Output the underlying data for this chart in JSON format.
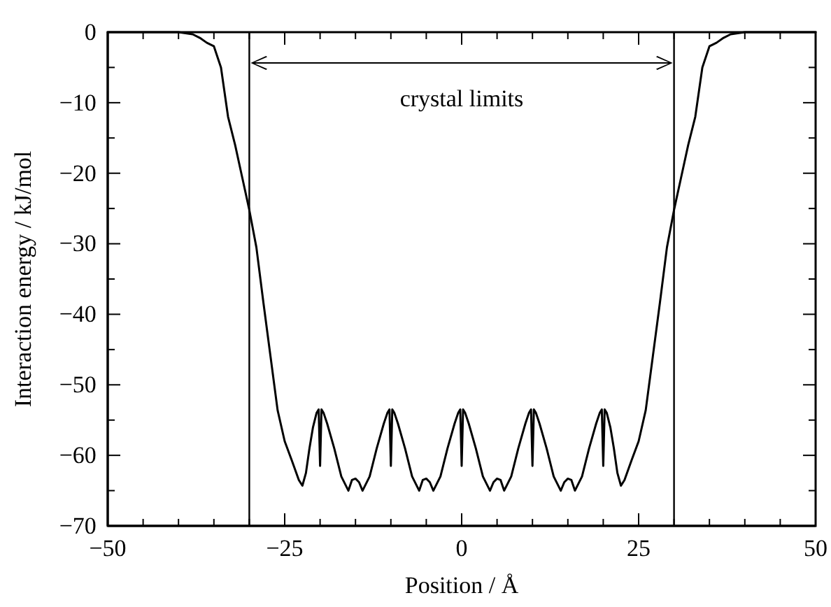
{
  "chart_data": {
    "type": "line",
    "xlabel": "Position / Å",
    "ylabel": "Interaction energy / kJ/mol",
    "xlim": [
      -50,
      50
    ],
    "ylim": [
      -70,
      0
    ],
    "xticks": [
      -50,
      {
        "value": -45,
        "label": null
      },
      {
        "value": -40,
        "label": null
      },
      {
        "value": -35,
        "label": null
      },
      {
        "value": -30,
        "label": null
      },
      -25,
      {
        "value": -20,
        "label": null
      },
      {
        "value": -15,
        "label": null
      },
      {
        "value": -10,
        "label": null
      },
      {
        "value": -5,
        "label": null
      },
      0,
      {
        "value": 5,
        "label": null
      },
      {
        "value": 10,
        "label": null
      },
      {
        "value": 15,
        "label": null
      },
      {
        "value": 20,
        "label": null
      },
      25,
      {
        "value": 30,
        "label": null
      },
      {
        "value": 35,
        "label": null
      },
      {
        "value": 40,
        "label": null
      },
      {
        "value": 45,
        "label": null
      },
      50
    ],
    "yticks": [
      -70,
      {
        "value": -65,
        "label": null
      },
      -60,
      {
        "value": -55,
        "label": null
      },
      -50,
      {
        "value": -45,
        "label": null
      },
      -40,
      {
        "value": -35,
        "label": null
      },
      -30,
      {
        "value": -25,
        "label": null
      },
      -20,
      {
        "value": -15,
        "label": null
      },
      -10,
      {
        "value": -5,
        "label": null
      },
      0
    ],
    "grid": false,
    "marker": "none",
    "line_style": "solid",
    "ref_lines": [
      {
        "axis": "x",
        "value": -30,
        "color": "#000000"
      },
      {
        "axis": "x",
        "value": 30,
        "color": "#000000"
      }
    ],
    "annotations": [
      "crystal limits"
    ],
    "series": [
      {
        "color": "#000000",
        "x": [
          -50,
          -45,
          -40,
          -38,
          -37,
          -36,
          -35,
          -34,
          -33,
          -32,
          -31,
          -30,
          -29,
          -28,
          -27,
          -26,
          -25,
          -24,
          -23,
          -22.5,
          -22,
          -21.5,
          -21,
          -20.5,
          -20.2,
          -20,
          -19.8,
          -19.5,
          -19,
          -18,
          -17,
          -16,
          -15.5,
          -15,
          -14.5,
          -14,
          -13,
          -12,
          -11,
          -10.5,
          -10.2,
          -10,
          -9.8,
          -9.5,
          -9,
          -8,
          -7,
          -6,
          -5.5,
          -5,
          -4.5,
          -4,
          -3,
          -2,
          -1,
          -0.5,
          -0.2,
          0,
          0.2,
          0.5,
          1,
          2,
          3,
          4,
          4.5,
          5,
          5.5,
          6,
          7,
          8,
          9,
          9.5,
          9.8,
          10,
          10.2,
          10.5,
          11,
          12,
          13,
          14,
          14.5,
          15,
          15.5,
          16,
          17,
          18,
          19,
          19.5,
          19.8,
          20,
          20.2,
          20.5,
          21,
          21.5,
          22,
          22.5,
          23,
          24,
          25,
          26,
          27,
          28,
          29,
          30,
          31,
          32,
          33,
          34,
          35,
          36,
          37,
          38,
          40,
          45,
          50
        ],
        "values": [
          0,
          0,
          0,
          -0.3,
          -0.8,
          -1.5,
          -2,
          -5,
          -12,
          -16,
          -20.6,
          -25.2,
          -30.5,
          -38.4,
          -46,
          -53.6,
          -58,
          -60.7,
          -63.5,
          -64.3,
          -62.5,
          -59,
          -56,
          -54,
          -53.5,
          -61.5,
          -53.5,
          -54,
          -55.5,
          -59,
          -63,
          -65,
          -63.5,
          -63.3,
          -63.8,
          -65,
          -63,
          -59,
          -55.5,
          -54,
          -53.5,
          -61.5,
          -53.5,
          -54,
          -55.5,
          -59,
          -63,
          -65,
          -63.5,
          -63.3,
          -63.8,
          -65,
          -63,
          -59,
          -55.5,
          -54,
          -53.5,
          -61.5,
          -53.5,
          -54,
          -55.5,
          -59,
          -63,
          -65,
          -63.8,
          -63.3,
          -63.5,
          -65,
          -63,
          -59,
          -55.5,
          -54,
          -53.5,
          -61.5,
          -53.5,
          -54,
          -55.5,
          -59,
          -63,
          -65,
          -63.8,
          -63.3,
          -63.5,
          -65,
          -63,
          -59,
          -55.5,
          -54,
          -53.5,
          -61.5,
          -53.5,
          -54,
          -56,
          -59,
          -62.5,
          -64.3,
          -63.5,
          -60.7,
          -58,
          -53.6,
          -46,
          -38.4,
          -30.5,
          -25.2,
          -20.6,
          -16,
          -12,
          -5,
          -2,
          -1.5,
          -0.8,
          -0.3,
          0,
          0,
          0
        ]
      }
    ]
  }
}
